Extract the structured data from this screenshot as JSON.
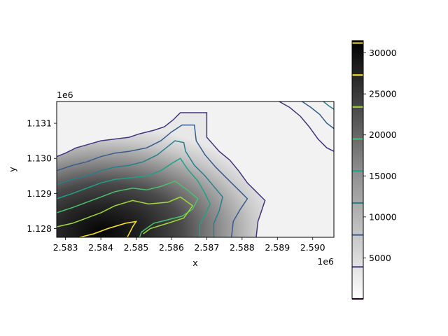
{
  "chart_data": {
    "type": "heatmap",
    "title": "",
    "xlabel": "x",
    "ylabel": "y",
    "x_offset_label": "1e6",
    "y_offset_label": "1e6",
    "xlim": [
      2582750,
      2590600
    ],
    "ylim": [
      1127750,
      1131620
    ],
    "x_ticks": [
      2583000,
      2584000,
      2585000,
      2586000,
      2587000,
      2588000,
      2589000,
      2590000
    ],
    "x_tick_labels": [
      "2.583",
      "2.584",
      "2.585",
      "2.586",
      "2.587",
      "2.588",
      "2.589",
      "2.590"
    ],
    "y_ticks": [
      1128000,
      1129000,
      1130000,
      1131000
    ],
    "y_tick_labels": [
      "1.128",
      "1.129",
      "1.130",
      "1.131"
    ],
    "colorbar": {
      "colormap": "gray_r",
      "range": [
        0,
        31500
      ],
      "ticks": [
        5000,
        10000,
        15000,
        20000,
        25000,
        30000
      ],
      "tick_labels": [
        "5000",
        "10000",
        "15000",
        "20000",
        "25000",
        "30000"
      ],
      "contour_levels": [
        0,
        3900,
        7800,
        11700,
        15600,
        19500,
        23400,
        27300,
        31200
      ],
      "contour_colors": [
        "#440154",
        "#46327e",
        "#365c8d",
        "#277f8e",
        "#1fa187",
        "#4ac16d",
        "#a0da39",
        "#fde725",
        "#fde725"
      ]
    },
    "contours": [
      {
        "level": 3900,
        "color": "#46327e",
        "points": [
          [
            2582750,
            1130050
          ],
          [
            2583000,
            1130150
          ],
          [
            2583300,
            1130300
          ],
          [
            2583650,
            1130400
          ],
          [
            2584000,
            1130500
          ],
          [
            2584400,
            1130550
          ],
          [
            2584800,
            1130600
          ],
          [
            2585100,
            1130700
          ],
          [
            2585500,
            1130800
          ],
          [
            2585800,
            1130900
          ],
          [
            2586050,
            1131100
          ],
          [
            2586250,
            1131300
          ],
          [
            2587000,
            1131300
          ],
          [
            2587000,
            1130600
          ],
          [
            2587350,
            1130200
          ],
          [
            2587650,
            1129950
          ],
          [
            2587900,
            1129650
          ],
          [
            2588150,
            1129300
          ],
          [
            2588400,
            1129050
          ],
          [
            2588650,
            1128800
          ],
          [
            2588550,
            1128500
          ],
          [
            2588450,
            1128200
          ],
          [
            2588400,
            1127750
          ]
        ]
      },
      {
        "level": 7800,
        "color": "#365c8d",
        "points": [
          [
            2582750,
            1129650
          ],
          [
            2583200,
            1129800
          ],
          [
            2583600,
            1129900
          ],
          [
            2584000,
            1130050
          ],
          [
            2584400,
            1130150
          ],
          [
            2584800,
            1130200
          ],
          [
            2585300,
            1130300
          ],
          [
            2585700,
            1130500
          ],
          [
            2586000,
            1130750
          ],
          [
            2586300,
            1130950
          ],
          [
            2586650,
            1130950
          ],
          [
            2586700,
            1130500
          ],
          [
            2586950,
            1130100
          ],
          [
            2587250,
            1129750
          ],
          [
            2587550,
            1129450
          ],
          [
            2587900,
            1129100
          ],
          [
            2588150,
            1128850
          ],
          [
            2587950,
            1128550
          ],
          [
            2587750,
            1128200
          ],
          [
            2587700,
            1127750
          ]
        ]
      },
      {
        "level": 11700,
        "color": "#277f8e",
        "points": [
          [
            2582750,
            1129250
          ],
          [
            2583200,
            1129400
          ],
          [
            2583600,
            1129500
          ],
          [
            2584000,
            1129650
          ],
          [
            2584400,
            1129750
          ],
          [
            2584800,
            1129800
          ],
          [
            2585200,
            1129900
          ],
          [
            2585600,
            1130100
          ],
          [
            2585850,
            1130300
          ],
          [
            2586100,
            1130500
          ],
          [
            2586350,
            1130450
          ],
          [
            2586400,
            1130200
          ],
          [
            2586650,
            1129800
          ],
          [
            2586950,
            1129500
          ],
          [
            2587200,
            1129200
          ],
          [
            2587450,
            1128900
          ],
          [
            2587350,
            1128500
          ],
          [
            2587200,
            1128150
          ],
          [
            2587200,
            1127750
          ]
        ]
      },
      {
        "level": 15600,
        "color": "#1fa187",
        "points": [
          [
            2582750,
            1128850
          ],
          [
            2583200,
            1129000
          ],
          [
            2583600,
            1129150
          ],
          [
            2584000,
            1129300
          ],
          [
            2584400,
            1129400
          ],
          [
            2584900,
            1129450
          ],
          [
            2585300,
            1129500
          ],
          [
            2585700,
            1129650
          ],
          [
            2586000,
            1129850
          ],
          [
            2586250,
            1130000
          ],
          [
            2586450,
            1129700
          ],
          [
            2586750,
            1129350
          ],
          [
            2586950,
            1129000
          ],
          [
            2587100,
            1128700
          ],
          [
            2586950,
            1128400
          ],
          [
            2586800,
            1128100
          ],
          [
            2586800,
            1127750
          ]
        ]
      },
      {
        "level": 19500,
        "color": "#4ac16d",
        "points": [
          [
            2582750,
            1128450
          ],
          [
            2583200,
            1128600
          ],
          [
            2583600,
            1128750
          ],
          [
            2584000,
            1128900
          ],
          [
            2584400,
            1129050
          ],
          [
            2584900,
            1129150
          ],
          [
            2585300,
            1129100
          ],
          [
            2585700,
            1129200
          ],
          [
            2586100,
            1129350
          ],
          [
            2586450,
            1129100
          ],
          [
            2586750,
            1128850
          ],
          [
            2586600,
            1128550
          ],
          [
            2586300,
            1128350
          ],
          [
            2585900,
            1128250
          ],
          [
            2585500,
            1128150
          ],
          [
            2585150,
            1127900
          ],
          [
            2585100,
            1127750
          ]
        ]
      },
      {
        "level": 23400,
        "color": "#a0da39",
        "points": [
          [
            2582750,
            1128050
          ],
          [
            2583200,
            1128150
          ],
          [
            2583600,
            1128300
          ],
          [
            2584000,
            1128450
          ],
          [
            2584400,
            1128650
          ],
          [
            2584900,
            1128800
          ],
          [
            2585350,
            1128700
          ],
          [
            2585900,
            1128750
          ],
          [
            2586250,
            1128900
          ],
          [
            2586600,
            1128650
          ],
          [
            2586350,
            1128300
          ],
          [
            2585900,
            1128150
          ],
          [
            2585400,
            1128000
          ],
          [
            2585200,
            1127850
          ]
        ]
      },
      {
        "level": 27300,
        "color": "#fde725",
        "points": [
          [
            2583400,
            1127750
          ],
          [
            2583800,
            1127850
          ],
          [
            2584200,
            1128000
          ],
          [
            2584700,
            1128150
          ],
          [
            2585000,
            1128200
          ],
          [
            2584900,
            1128050
          ],
          [
            2584800,
            1127850
          ],
          [
            2584750,
            1127750
          ]
        ]
      },
      {
        "level": 3900,
        "color": "#46327e",
        "points": [
          [
            2589050,
            1131620
          ],
          [
            2589350,
            1131450
          ],
          [
            2589650,
            1131200
          ],
          [
            2589900,
            1130900
          ],
          [
            2590150,
            1130550
          ],
          [
            2590400,
            1130300
          ],
          [
            2590600,
            1130200
          ]
        ]
      },
      {
        "level": 7800,
        "color": "#365c8d",
        "points": [
          [
            2589700,
            1131620
          ],
          [
            2589950,
            1131450
          ],
          [
            2590200,
            1131250
          ],
          [
            2590400,
            1131000
          ],
          [
            2590600,
            1130850
          ]
        ]
      },
      {
        "level": 11700,
        "color": "#277f8e",
        "points": [
          [
            2590300,
            1131620
          ],
          [
            2590450,
            1131500
          ],
          [
            2590600,
            1131400
          ]
        ]
      }
    ]
  }
}
